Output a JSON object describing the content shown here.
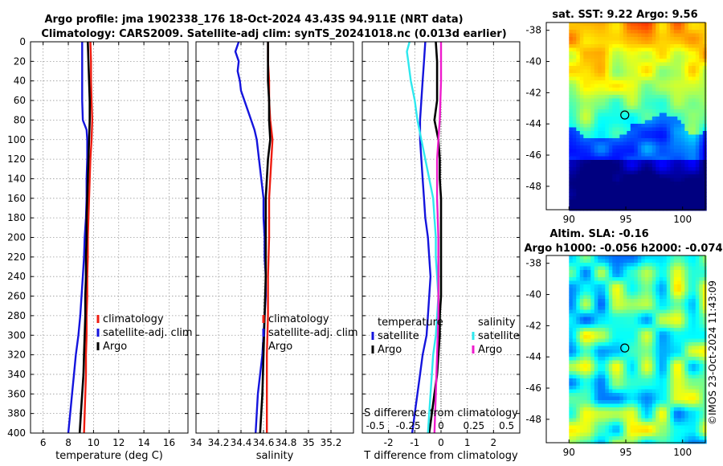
{
  "figure_title": {
    "line1": "Argo profile: jma 1902338_176 18-Oct-2024 43.43S 94.911E (NRT data)",
    "line2": "Climatology: CARS2009. Satellite-adj clim: synTS_20241018.nc (0.013d earlier)"
  },
  "colors": {
    "climatology": "#ee1c10",
    "satellite": "#1414dd",
    "argo": "#000000",
    "cyan": "#2ee8ee",
    "magenta": "#ee1ccc"
  },
  "chart_data": [
    {
      "type": "line",
      "name": "temperature-profile",
      "xlabel": "temperature (deg C)",
      "ylabel": "",
      "xlim": [
        5,
        17.5
      ],
      "ylim": [
        400,
        0
      ],
      "xticks": [
        6,
        8,
        10,
        12,
        14,
        16
      ],
      "xtick_labels": [
        "6",
        "8",
        "10",
        "12",
        "14",
        "16"
      ],
      "yticks": [
        0,
        20,
        40,
        60,
        80,
        100,
        120,
        140,
        160,
        180,
        200,
        220,
        240,
        260,
        280,
        300,
        320,
        340,
        360,
        380,
        400
      ],
      "ytick_labels": [
        "0",
        "20",
        "40",
        "60",
        "80",
        "100",
        "120",
        "140",
        "160",
        "180",
        "200",
        "220",
        "240",
        "260",
        "280",
        "300",
        "320",
        "340",
        "360",
        "380",
        "400"
      ],
      "legend": [
        "climatology",
        "satellite-adj. clim",
        "Argo"
      ],
      "legend_position": "lower-right",
      "series": [
        {
          "name": "climatology",
          "color": "#ee1c10",
          "points": [
            [
              9.75,
              0
            ],
            [
              9.8,
              20
            ],
            [
              9.8,
              40
            ],
            [
              9.85,
              60
            ],
            [
              9.9,
              80
            ],
            [
              9.85,
              100
            ],
            [
              9.75,
              120
            ],
            [
              9.7,
              140
            ],
            [
              9.65,
              160
            ],
            [
              9.6,
              180
            ],
            [
              9.55,
              200
            ],
            [
              9.55,
              220
            ],
            [
              9.5,
              240
            ],
            [
              9.5,
              260
            ],
            [
              9.45,
              280
            ],
            [
              9.45,
              300
            ],
            [
              9.4,
              320
            ],
            [
              9.4,
              340
            ],
            [
              9.35,
              360
            ],
            [
              9.3,
              380
            ],
            [
              9.25,
              400
            ]
          ]
        },
        {
          "name": "satellite-adj. clim",
          "color": "#1414dd",
          "points": [
            [
              9.1,
              0
            ],
            [
              9.1,
              20
            ],
            [
              9.1,
              40
            ],
            [
              9.1,
              60
            ],
            [
              9.15,
              80
            ],
            [
              9.45,
              90
            ],
            [
              9.5,
              100
            ],
            [
              9.5,
              120
            ],
            [
              9.45,
              140
            ],
            [
              9.45,
              160
            ],
            [
              9.4,
              180
            ],
            [
              9.3,
              200
            ],
            [
              9.25,
              220
            ],
            [
              9.15,
              240
            ],
            [
              9.05,
              260
            ],
            [
              8.95,
              280
            ],
            [
              8.8,
              300
            ],
            [
              8.6,
              320
            ],
            [
              8.45,
              340
            ],
            [
              8.3,
              360
            ],
            [
              8.15,
              380
            ],
            [
              8.0,
              400
            ]
          ]
        },
        {
          "name": "Argo",
          "color": "#000000",
          "points": [
            [
              9.55,
              0
            ],
            [
              9.6,
              20
            ],
            [
              9.65,
              40
            ],
            [
              9.7,
              60
            ],
            [
              9.7,
              80
            ],
            [
              9.65,
              100
            ],
            [
              9.6,
              120
            ],
            [
              9.55,
              140
            ],
            [
              9.5,
              160
            ],
            [
              9.45,
              180
            ],
            [
              9.45,
              200
            ],
            [
              9.4,
              220
            ],
            [
              9.4,
              240
            ],
            [
              9.35,
              260
            ],
            [
              9.35,
              280
            ],
            [
              9.3,
              300
            ],
            [
              9.25,
              320
            ],
            [
              9.2,
              340
            ],
            [
              9.1,
              360
            ],
            [
              9.0,
              380
            ],
            [
              8.9,
              400
            ]
          ]
        }
      ]
    },
    {
      "type": "line",
      "name": "salinity-profile",
      "xlabel": "salinity",
      "ylabel": "",
      "xlim": [
        34,
        35.4
      ],
      "ylim": [
        400,
        0
      ],
      "xticks": [
        34,
        34.2,
        34.4,
        34.6,
        34.8,
        35,
        35.2
      ],
      "xtick_labels": [
        "34",
        "34.2",
        "34.4",
        "34.6",
        "34.8",
        "35",
        "35.2"
      ],
      "legend": [
        "climatology",
        "satellite-adj. clim",
        "Argo"
      ],
      "legend_position": "lower-right",
      "series": [
        {
          "name": "climatology",
          "color": "#ee1c10",
          "points": [
            [
              34.64,
              0
            ],
            [
              34.64,
              20
            ],
            [
              34.65,
              40
            ],
            [
              34.65,
              60
            ],
            [
              34.66,
              80
            ],
            [
              34.68,
              100
            ],
            [
              34.67,
              120
            ],
            [
              34.66,
              140
            ],
            [
              34.65,
              160
            ],
            [
              34.65,
              200
            ],
            [
              34.64,
              240
            ],
            [
              34.64,
              280
            ],
            [
              34.63,
              320
            ],
            [
              34.63,
              360
            ],
            [
              34.63,
              400
            ]
          ]
        },
        {
          "name": "satellite-adj. clim",
          "color": "#1414dd",
          "points": [
            [
              34.38,
              0
            ],
            [
              34.35,
              10
            ],
            [
              34.38,
              20
            ],
            [
              34.37,
              30
            ],
            [
              34.39,
              40
            ],
            [
              34.4,
              50
            ],
            [
              34.43,
              60
            ],
            [
              34.46,
              70
            ],
            [
              34.49,
              80
            ],
            [
              34.52,
              90
            ],
            [
              34.54,
              100
            ],
            [
              34.56,
              120
            ],
            [
              34.58,
              140
            ],
            [
              34.6,
              160
            ],
            [
              34.6,
              180
            ],
            [
              34.61,
              200
            ],
            [
              34.61,
              220
            ],
            [
              34.62,
              240
            ],
            [
              34.62,
              260
            ],
            [
              34.61,
              280
            ],
            [
              34.6,
              300
            ],
            [
              34.59,
              320
            ],
            [
              34.57,
              340
            ],
            [
              34.55,
              360
            ],
            [
              34.54,
              380
            ],
            [
              34.53,
              400
            ]
          ]
        },
        {
          "name": "Argo",
          "color": "#000000",
          "points": [
            [
              34.64,
              0
            ],
            [
              34.64,
              20
            ],
            [
              34.64,
              40
            ],
            [
              34.65,
              60
            ],
            [
              34.65,
              80
            ],
            [
              34.66,
              100
            ],
            [
              34.64,
              120
            ],
            [
              34.63,
              140
            ],
            [
              34.62,
              160
            ],
            [
              34.62,
              200
            ],
            [
              34.62,
              240
            ],
            [
              34.61,
              280
            ],
            [
              34.6,
              320
            ],
            [
              34.59,
              360
            ],
            [
              34.58,
              380
            ],
            [
              34.57,
              400
            ]
          ]
        }
      ]
    },
    {
      "type": "line",
      "name": "difference-profile",
      "xlabel": "T difference from climatology",
      "x2label": "S difference from climatology",
      "xlim": [
        -3,
        3
      ],
      "x2lim": [
        -0.6,
        0.6
      ],
      "ylim": [
        400,
        0
      ],
      "xticks": [
        -2,
        -1,
        0,
        1,
        2
      ],
      "xtick_labels": [
        "-2",
        "-1",
        "0",
        "1",
        "2"
      ],
      "x2ticks": [
        -0.5,
        -0.25,
        0,
        0.25,
        0.5
      ],
      "x2tick_labels": [
        "-0.5",
        "-0.25",
        "0",
        "0.25",
        "0.5"
      ],
      "legend_temperature": {
        "title": "temperature",
        "entries": [
          "satellite",
          "Argo"
        ]
      },
      "legend_salinity": {
        "title": "salinity",
        "entries": [
          "satellite",
          "Argo"
        ]
      },
      "series": [
        {
          "name": "temperature satellite",
          "axis": "T",
          "color": "#1414dd",
          "points": [
            [
              -0.6,
              0
            ],
            [
              -0.65,
              20
            ],
            [
              -0.7,
              40
            ],
            [
              -0.75,
              60
            ],
            [
              -0.8,
              80
            ],
            [
              -0.8,
              100
            ],
            [
              -0.75,
              120
            ],
            [
              -0.7,
              140
            ],
            [
              -0.65,
              160
            ],
            [
              -0.6,
              180
            ],
            [
              -0.5,
              200
            ],
            [
              -0.45,
              220
            ],
            [
              -0.4,
              240
            ],
            [
              -0.45,
              260
            ],
            [
              -0.5,
              280
            ],
            [
              -0.55,
              300
            ],
            [
              -0.7,
              320
            ],
            [
              -0.8,
              340
            ],
            [
              -0.9,
              360
            ],
            [
              -1.0,
              380
            ],
            [
              -1.1,
              400
            ]
          ]
        },
        {
          "name": "temperature Argo",
          "axis": "T",
          "color": "#000000",
          "points": [
            [
              -0.2,
              0
            ],
            [
              -0.15,
              20
            ],
            [
              -0.15,
              40
            ],
            [
              -0.15,
              60
            ],
            [
              -0.25,
              80
            ],
            [
              -0.1,
              100
            ],
            [
              -0.05,
              120
            ],
            [
              -0.05,
              140
            ],
            [
              0,
              160
            ],
            [
              0,
              180
            ],
            [
              0,
              200
            ],
            [
              0,
              220
            ],
            [
              0,
              240
            ],
            [
              0,
              260
            ],
            [
              -0.05,
              280
            ],
            [
              -0.05,
              300
            ],
            [
              -0.1,
              320
            ],
            [
              -0.15,
              340
            ],
            [
              -0.25,
              360
            ],
            [
              -0.35,
              380
            ],
            [
              -0.45,
              400
            ]
          ]
        },
        {
          "name": "salinity satellite",
          "axis": "S",
          "color": "#2ee8ee",
          "points": [
            [
              -0.24,
              0
            ],
            [
              -0.26,
              10
            ],
            [
              -0.25,
              20
            ],
            [
              -0.23,
              40
            ],
            [
              -0.2,
              60
            ],
            [
              -0.18,
              80
            ],
            [
              -0.15,
              100
            ],
            [
              -0.12,
              120
            ],
            [
              -0.09,
              140
            ],
            [
              -0.06,
              160
            ],
            [
              -0.05,
              180
            ],
            [
              -0.04,
              200
            ],
            [
              -0.04,
              220
            ],
            [
              -0.03,
              240
            ],
            [
              -0.02,
              260
            ],
            [
              -0.03,
              280
            ],
            [
              -0.04,
              300
            ],
            [
              -0.06,
              320
            ],
            [
              -0.07,
              340
            ],
            [
              -0.08,
              360
            ],
            [
              -0.09,
              380
            ],
            [
              -0.1,
              400
            ]
          ]
        },
        {
          "name": "salinity Argo",
          "axis": "S",
          "color": "#ee1ccc",
          "points": [
            [
              0,
              0
            ],
            [
              0,
              40
            ],
            [
              -0.01,
              80
            ],
            [
              -0.02,
              100
            ],
            [
              -0.03,
              120
            ],
            [
              -0.03,
              160
            ],
            [
              -0.02,
              200
            ],
            [
              -0.02,
              240
            ],
            [
              -0.02,
              280
            ],
            [
              -0.03,
              320
            ],
            [
              -0.04,
              360
            ],
            [
              -0.05,
              400
            ]
          ]
        }
      ]
    },
    {
      "type": "heatmap",
      "name": "sst-map",
      "title": "sat. SST: 9.22 Argo: 9.56",
      "xlim": [
        88,
        102
      ],
      "ylim": [
        -49.5,
        -37.5
      ],
      "xticks": [
        90,
        95,
        100
      ],
      "xtick_labels": [
        "90",
        "95",
        "100"
      ],
      "yticks": [
        -38,
        -40,
        -42,
        -44,
        -46,
        -48
      ],
      "ytick_labels": [
        "-38",
        "-40",
        "-42",
        "-44",
        "-46",
        "-48"
      ],
      "data_lon_range": [
        90,
        102
      ],
      "marker": {
        "lon": 94.911,
        "lat": -43.43
      }
    },
    {
      "type": "heatmap",
      "name": "sla-map",
      "title1": "Altim. SLA: -0.16",
      "title2": "Argo h1000: -0.056 h2000: -0.074",
      "xlim": [
        88,
        102
      ],
      "ylim": [
        -49.5,
        -37.5
      ],
      "xticks": [
        90,
        95,
        100
      ],
      "xtick_labels": [
        "90",
        "95",
        "100"
      ],
      "yticks": [
        -38,
        -40,
        -42,
        -44,
        -46,
        -48
      ],
      "ytick_labels": [
        "-38",
        "-40",
        "-42",
        "-44",
        "-46",
        "-48"
      ],
      "data_lon_range": [
        90,
        102
      ],
      "marker": {
        "lon": 94.911,
        "lat": -43.43
      }
    }
  ],
  "credit": "©IMOS 23-Oct-2024 11:43:09"
}
